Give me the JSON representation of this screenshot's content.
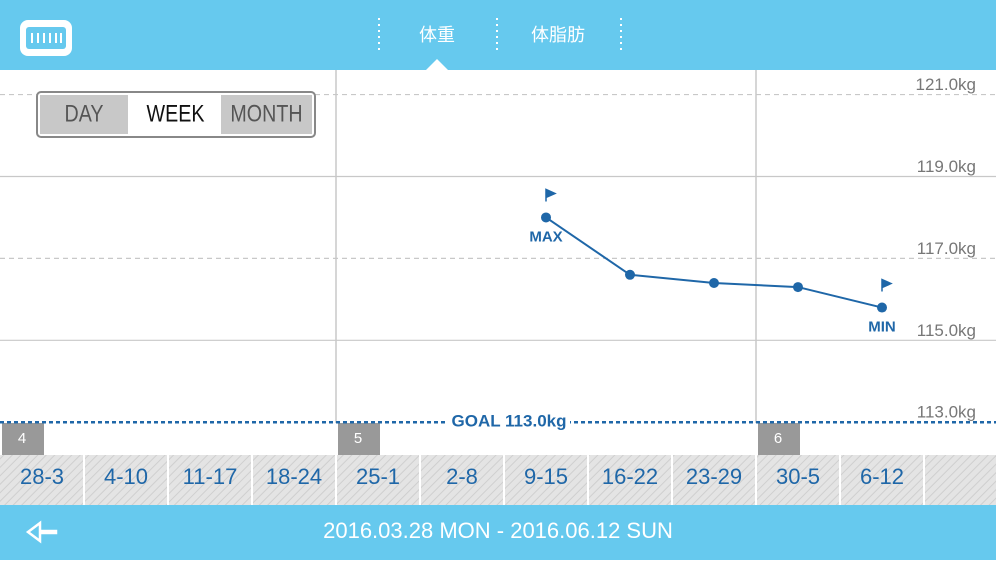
{
  "header": {
    "tabs": [
      "体重",
      "体脂肪"
    ]
  },
  "period_buttons": {
    "items": [
      "DAY",
      "WEEK",
      "MONTH"
    ],
    "selected": "WEEK"
  },
  "chart_data": {
    "type": "line",
    "categories": [
      "28-3",
      "4-10",
      "11-17",
      "18-24",
      "25-1",
      "2-8",
      "9-15",
      "16-22",
      "23-29",
      "30-5",
      "6-12"
    ],
    "months": [
      4,
      null,
      null,
      null,
      5,
      null,
      null,
      null,
      null,
      6,
      null
    ],
    "series": [
      {
        "color": "#1f67a8",
        "values": [
          null,
          null,
          null,
          null,
          null,
          null,
          118.0,
          116.6,
          116.4,
          116.3,
          115.8
        ]
      }
    ],
    "ylim": [
      112.2,
      121.6
    ],
    "yticks": [
      {
        "value": 113,
        "label": "113.0kg"
      },
      {
        "value": 115,
        "label": "115.0kg"
      },
      {
        "value": 117,
        "label": "117.0kg"
      },
      {
        "value": 119,
        "label": "119.0kg"
      },
      {
        "value": 121,
        "label": "121.0kg"
      }
    ],
    "grid": true,
    "goal": 113,
    "goal_label": "GOAL 113.0kg",
    "max_label": "MAX",
    "min_label": "MIN"
  },
  "footer": {
    "date_range": "2016.03.28 MON - 2016.06.12 SUN"
  }
}
